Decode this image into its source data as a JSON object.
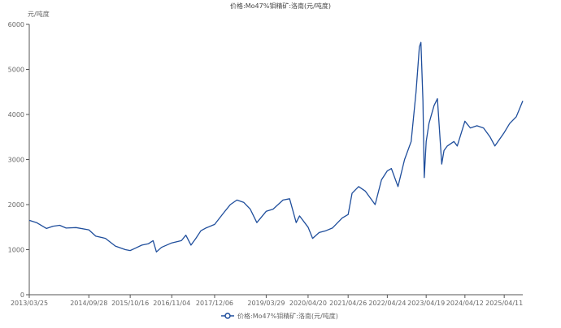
{
  "chart_data": {
    "type": "line",
    "title": "价格:Mo47%钼精矿:洛南(元/吨度)",
    "ylabel": "元/吨度",
    "xlabel": "",
    "ylim": [
      0,
      6000
    ],
    "yticks": [
      0,
      1000,
      2000,
      3000,
      4000,
      5000,
      6000
    ],
    "x_range": [
      "2013/03/25",
      "2025/09/30"
    ],
    "xticks": [
      "2013/03/25",
      "2014/09/28",
      "2015/10/16",
      "2016/11/04",
      "2017/12/06",
      "2019/03/29",
      "2020/04/20",
      "2021/04/26",
      "2022/04/24",
      "2023/04/19",
      "2024/04/12",
      "2025/04/11"
    ],
    "grid": false,
    "legend_position": "bottom",
    "series": [
      {
        "name": "价格:Mo47%钼精矿:洛南(元/吨度)",
        "color": "#1f4e9c",
        "points": [
          [
            "2013/03/25",
            1650
          ],
          [
            "2013/06/01",
            1600
          ],
          [
            "2013/09/01",
            1470
          ],
          [
            "2013/11/01",
            1520
          ],
          [
            "2014/01/01",
            1540
          ],
          [
            "2014/03/01",
            1480
          ],
          [
            "2014/06/01",
            1490
          ],
          [
            "2014/09/28",
            1440
          ],
          [
            "2014/12/01",
            1300
          ],
          [
            "2015/03/01",
            1250
          ],
          [
            "2015/06/01",
            1080
          ],
          [
            "2015/09/01",
            1000
          ],
          [
            "2015/10/16",
            980
          ],
          [
            "2015/12/01",
            1030
          ],
          [
            "2016/02/01",
            1100
          ],
          [
            "2016/04/01",
            1130
          ],
          [
            "2016/05/15",
            1200
          ],
          [
            "2016/06/15",
            950
          ],
          [
            "2016/08/01",
            1050
          ],
          [
            "2016/11/04",
            1150
          ],
          [
            "2017/02/01",
            1200
          ],
          [
            "2017/03/15",
            1320
          ],
          [
            "2017/05/01",
            1100
          ],
          [
            "2017/06/15",
            1250
          ],
          [
            "2017/08/01",
            1420
          ],
          [
            "2017/09/15",
            1480
          ],
          [
            "2017/12/06",
            1560
          ],
          [
            "2018/03/01",
            1820
          ],
          [
            "2018/05/01",
            2000
          ],
          [
            "2018/07/01",
            2100
          ],
          [
            "2018/09/01",
            2050
          ],
          [
            "2018/11/01",
            1900
          ],
          [
            "2019/01/01",
            1600
          ],
          [
            "2019/03/29",
            1850
          ],
          [
            "2019/06/01",
            1900
          ],
          [
            "2019/09/01",
            2100
          ],
          [
            "2019/11/01",
            2130
          ],
          [
            "2020/01/01",
            1600
          ],
          [
            "2020/02/01",
            1750
          ],
          [
            "2020/04/20",
            1500
          ],
          [
            "2020/06/01",
            1250
          ],
          [
            "2020/08/01",
            1380
          ],
          [
            "2020/10/01",
            1420
          ],
          [
            "2020/12/01",
            1480
          ],
          [
            "2021/03/01",
            1700
          ],
          [
            "2021/04/26",
            1780
          ],
          [
            "2021/06/01",
            2250
          ],
          [
            "2021/08/01",
            2400
          ],
          [
            "2021/10/01",
            2300
          ],
          [
            "2022/01/01",
            2000
          ],
          [
            "2022/03/01",
            2550
          ],
          [
            "2022/04/24",
            2750
          ],
          [
            "2022/06/01",
            2800
          ],
          [
            "2022/08/01",
            2400
          ],
          [
            "2022/10/01",
            3000
          ],
          [
            "2022/12/01",
            3400
          ],
          [
            "2023/01/15",
            4500
          ],
          [
            "2023/02/15",
            5500
          ],
          [
            "2023/03/01",
            5600
          ],
          [
            "2023/03/20",
            4300
          ],
          [
            "2023/04/01",
            2600
          ],
          [
            "2023/04/19",
            3400
          ],
          [
            "2023/05/15",
            3800
          ],
          [
            "2023/07/01",
            4200
          ],
          [
            "2023/08/01",
            4350
          ],
          [
            "2023/09/10",
            2900
          ],
          [
            "2023/10/01",
            3200
          ],
          [
            "2023/11/01",
            3300
          ],
          [
            "2024/01/01",
            3400
          ],
          [
            "2024/02/01",
            3300
          ],
          [
            "2024/04/12",
            3850
          ],
          [
            "2024/06/01",
            3700
          ],
          [
            "2024/08/01",
            3750
          ],
          [
            "2024/10/01",
            3700
          ],
          [
            "2024/12/01",
            3500
          ],
          [
            "2025/01/15",
            3300
          ],
          [
            "2025/04/11",
            3600
          ],
          [
            "2025/06/01",
            3800
          ],
          [
            "2025/08/01",
            3950
          ],
          [
            "2025/09/30",
            4300
          ]
        ]
      }
    ]
  }
}
